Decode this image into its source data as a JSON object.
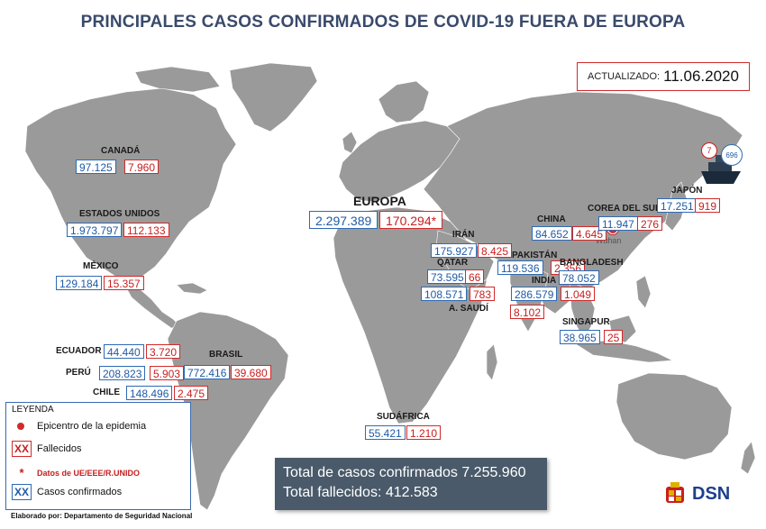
{
  "title": "PRINCIPALES CASOS CONFIRMADOS DE COVID-19 FUERA DE EUROPA",
  "updated": {
    "label": "ACTUALIZADO:",
    "date": "11.06.2020"
  },
  "cruise_ship": {
    "deaths": "7",
    "cases": "696"
  },
  "epicenter_city": "Wuhan",
  "regions": {
    "canada": {
      "name": "CANADÁ",
      "cases": "97.125",
      "deaths": "7.960"
    },
    "usa": {
      "name": "ESTADOS UNIDOS",
      "cases": "1.973.797",
      "deaths": "112.133"
    },
    "mexico": {
      "name": "MÉXICO",
      "cases": "129.184",
      "deaths": "15.357"
    },
    "ecuador": {
      "name": "ECUADOR",
      "cases": "44.440",
      "deaths": "3.720"
    },
    "peru": {
      "name": "PERÚ",
      "cases": "208.823",
      "deaths": "5.903"
    },
    "chile": {
      "name": "CHILE",
      "cases": "148.496",
      "deaths": "2.475"
    },
    "brasil": {
      "name": "BRASIL",
      "cases": "772.416",
      "deaths": "39.680"
    },
    "europa": {
      "name": "EUROPA",
      "cases": "2.297.389",
      "deaths": "170.294*"
    },
    "iran": {
      "name": "IRÁN",
      "cases": "175.927",
      "deaths": "8.425"
    },
    "qatar": {
      "name": "QATAR",
      "cases": "73.595",
      "deaths": "66"
    },
    "asaudi": {
      "name": "A. SAUDÍ",
      "cases": "108.571",
      "deaths": "783"
    },
    "pakistan": {
      "name": "PAKISTÁN",
      "cases": "119.536",
      "deaths": "2.356"
    },
    "india": {
      "name": "INDIA",
      "cases": "286.579",
      "deaths": "8.102"
    },
    "bangladesh": {
      "name": "BANGLADESH",
      "cases": "78.052",
      "deaths": "1.049"
    },
    "china": {
      "name": "CHINA",
      "cases": "84.652",
      "deaths": "4.645"
    },
    "corea": {
      "name": "COREA DEL SUR",
      "cases": "11.947",
      "deaths": "276"
    },
    "japon": {
      "name": "JAPÓN",
      "cases": "17.251",
      "deaths": "919"
    },
    "singapur": {
      "name": "SINGAPUR",
      "cases": "38.965",
      "deaths": "25"
    },
    "sudafrica": {
      "name": "SUDÁFRICA",
      "cases": "55.421",
      "deaths": "1.210"
    }
  },
  "legend": {
    "heading": "LEYENDA",
    "epicenter": "Epicentro de la epidemia",
    "deaths_key": "XX",
    "deaths": "Fallecidos",
    "asterisk": "*",
    "eu_data": "Datos de UE/EEE/R.UNIDO",
    "cases_key": "XX",
    "cases": "Casos confirmados"
  },
  "totals": {
    "cases": "Total de casos confirmados 7.255.960",
    "deaths": "Total fallecidos: 412.583"
  },
  "credit": "Elaborado por: Departamento de Seguridad Nacional",
  "logo_text": "DSN",
  "colors": {
    "cases": "#1f5aa6",
    "deaths": "#c81e1e",
    "land": "#9a9a9a",
    "title": "#3a4a6b",
    "totals_bg": "#4a5a6a"
  }
}
